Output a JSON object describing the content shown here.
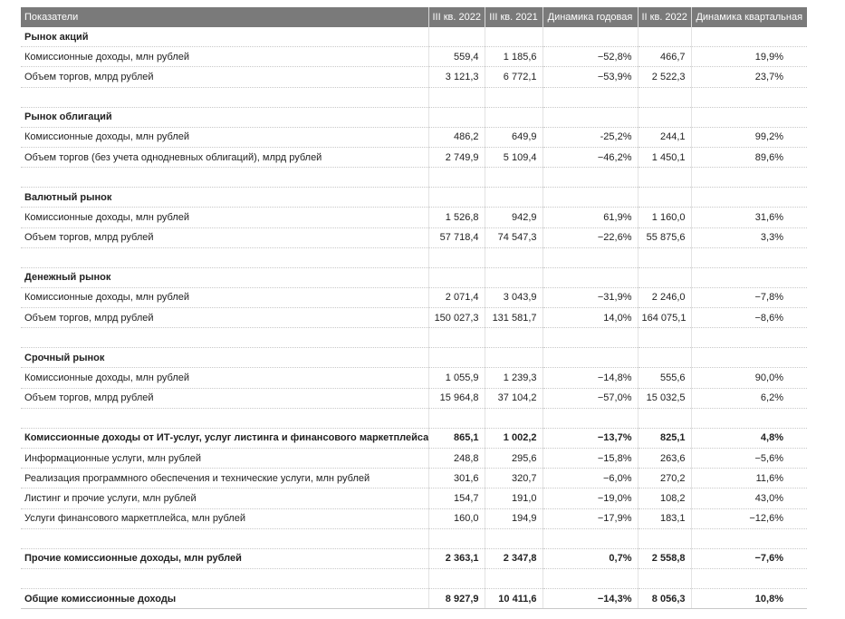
{
  "header": [
    "Показатели",
    "III кв. 2022",
    "III кв. 2021",
    "Динамика годовая",
    "II кв. 2022",
    "Динамика квартальная"
  ],
  "rows": [
    {
      "type": "section",
      "label": "Рынок акций"
    },
    {
      "type": "data",
      "label": "Комиссионные доходы, млн рублей",
      "v": [
        "559,4",
        "1 185,6",
        "−52,8%",
        "466,7",
        "19,9%"
      ]
    },
    {
      "type": "data",
      "label": "Объем торгов, млрд рублей",
      "v": [
        "3 121,3",
        "6 772,1",
        "−53,9%",
        "2 522,3",
        "23,7%"
      ]
    },
    {
      "type": "blank"
    },
    {
      "type": "section",
      "label": "Рынок облигаций"
    },
    {
      "type": "data",
      "label": "Комиссионные доходы, млн рублей",
      "v": [
        "486,2",
        "649,9",
        "-25,2%",
        "244,1",
        "99,2%"
      ]
    },
    {
      "type": "data",
      "label": "Объем торгов (без учета однодневных облигаций), млрд рублей",
      "v": [
        "2 749,9",
        "5 109,4",
        "−46,2%",
        "1 450,1",
        "89,6%"
      ]
    },
    {
      "type": "blank"
    },
    {
      "type": "section",
      "label": "Валютный рынок"
    },
    {
      "type": "data",
      "label": "Комиссионные доходы, млн рублей",
      "v": [
        "1 526,8",
        "942,9",
        "61,9%",
        "1 160,0",
        "31,6%"
      ]
    },
    {
      "type": "data",
      "label": "Объем торгов, млрд рублей",
      "v": [
        "57 718,4",
        "74 547,3",
        "−22,6%",
        "55 875,6",
        "3,3%"
      ]
    },
    {
      "type": "blank"
    },
    {
      "type": "section",
      "label": "Денежный рынок"
    },
    {
      "type": "data",
      "label": "Комиссионные доходы, млн рублей",
      "v": [
        "2 071,4",
        "3 043,9",
        "−31,9%",
        "2 246,0",
        "−7,8%"
      ]
    },
    {
      "type": "data",
      "label": "Объем торгов, млрд рублей",
      "v": [
        "150 027,3",
        "131 581,7",
        "14,0%",
        "164 075,1",
        "−8,6%"
      ]
    },
    {
      "type": "blank"
    },
    {
      "type": "section",
      "label": "Срочный рынок"
    },
    {
      "type": "data",
      "label": "Комиссионные доходы, млн рублей",
      "v": [
        "1 055,9",
        "1 239,3",
        "−14,8%",
        "555,6",
        "90,0%"
      ]
    },
    {
      "type": "data",
      "label": "Объем торгов, млрд рублей",
      "v": [
        "15 964,8",
        "37 104,2",
        "−57,0%",
        "15 032,5",
        "6,2%"
      ]
    },
    {
      "type": "blank"
    },
    {
      "type": "section",
      "label": "Комиссионные доходы от ИТ-услуг, услуг листинга и финансового маркетплейса",
      "v": [
        "865,1",
        "1 002,2",
        "−13,7%",
        "825,1",
        "4,8%"
      ]
    },
    {
      "type": "data",
      "label": "Информационные услуги, млн рублей",
      "v": [
        "248,8",
        "295,6",
        "−15,8%",
        "263,6",
        "−5,6%"
      ]
    },
    {
      "type": "data",
      "label": "Реализация программного обеспечения и технические услуги, млн рублей",
      "v": [
        "301,6",
        "320,7",
        "−6,0%",
        "270,2",
        "11,6%"
      ]
    },
    {
      "type": "data",
      "label": "Листинг и прочие услуги, млн рублей",
      "v": [
        "154,7",
        "191,0",
        "−19,0%",
        "108,2",
        "43,0%"
      ]
    },
    {
      "type": "data",
      "label": "Услуги финансового маркетплейса, млн рублей",
      "v": [
        "160,0",
        "194,9",
        "−17,9%",
        "183,1",
        "−12,6%"
      ]
    },
    {
      "type": "blank"
    },
    {
      "type": "section",
      "label": "Прочие комиссионные доходы, млн рублей",
      "v": [
        "2 363,1",
        "2 347,8",
        "0,7%",
        "2 558,8",
        "−7,6%"
      ]
    },
    {
      "type": "blank"
    },
    {
      "type": "total",
      "label": "Общие комиссионные доходы",
      "v": [
        "8 927,9",
        "10 411,6",
        "−14,3%",
        "8 056,3",
        "10,8%"
      ]
    }
  ]
}
